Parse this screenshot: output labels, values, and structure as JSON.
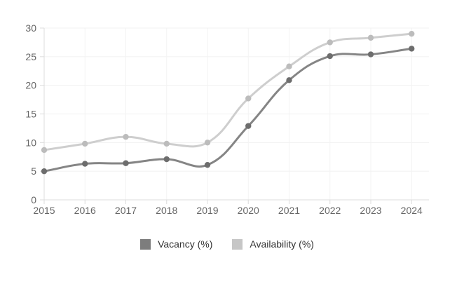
{
  "chart_data": {
    "type": "line",
    "title": "",
    "xlabel": "",
    "ylabel": "",
    "x": [
      "2015",
      "2016",
      "2017",
      "2018",
      "2019",
      "2020",
      "2021",
      "2022",
      "2023",
      "2024"
    ],
    "series": [
      {
        "name": "Vacancy (%)",
        "values": [
          5.0,
          6.3,
          6.4,
          7.1,
          6.1,
          12.9,
          20.9,
          25.1,
          25.4,
          26.4
        ],
        "line_color": "#858585",
        "point_color": "#6d6d6d",
        "legend_color": "#7d7d7d"
      },
      {
        "name": "Availability (%)",
        "values": [
          8.7,
          9.8,
          11.0,
          9.8,
          10.0,
          17.7,
          23.3,
          27.5,
          28.3,
          29.0
        ],
        "line_color": "#cecece",
        "point_color": "#bcbcbc",
        "legend_color": "#c6c6c6"
      }
    ],
    "ylim": [
      0,
      30
    ],
    "yticks": [
      0,
      5,
      10,
      15,
      20,
      25,
      30
    ],
    "grid": true,
    "legend_position": "bottom",
    "curve_tension": 0.4,
    "colors": {
      "gridline": "#f0f0f0",
      "vertical_gridline": "#f3f3f3",
      "axis": "#dcdcdc",
      "tick_label": "#666666",
      "legend_text": "#333333",
      "background": "#ffffff"
    }
  }
}
